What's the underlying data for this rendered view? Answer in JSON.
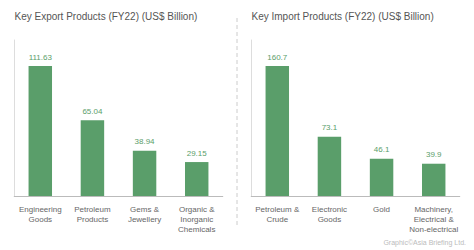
{
  "chart_data": [
    {
      "type": "bar",
      "title": "Key Export Products (FY22) (US$ Billion)",
      "categories": [
        "Engineering\nGoods",
        "Petroleum\nProducts",
        "Gems &\nJewellery",
        "Organic &\nInorganic\nChemicals"
      ],
      "values": [
        111.63,
        65.04,
        38.94,
        29.15
      ],
      "color": "#5a9e6a",
      "ylim": [
        0,
        133.956
      ],
      "data_labels": true,
      "tick_labels": "x",
      "grid": false
    },
    {
      "type": "bar",
      "title": "Key Import Products (FY22) (US$ Billion)",
      "categories": [
        "Petroleum &\nCrude",
        "Electronic\nGoods",
        "Gold",
        "Machinery,\nElectrical &\nNon-electrical"
      ],
      "values": [
        160.7,
        73.1,
        46.1,
        39.9
      ],
      "color": "#5a9e6a",
      "ylim": [
        0,
        192.84
      ],
      "data_labels": true,
      "tick_labels": "x",
      "grid": false,
      "annotations": [
        "Graphic©Asia Briefing Ltd."
      ]
    }
  ]
}
